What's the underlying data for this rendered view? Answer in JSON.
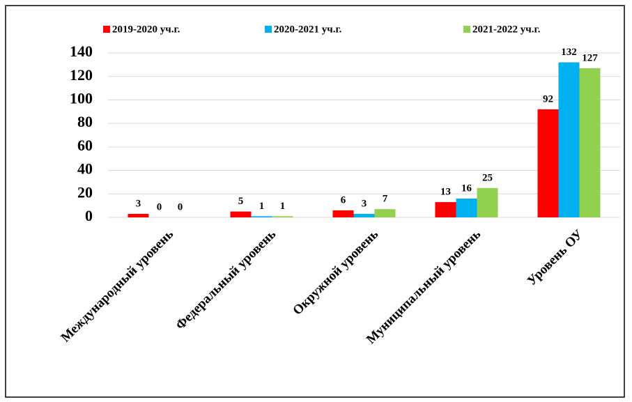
{
  "chart_data": {
    "type": "bar",
    "categories": [
      "Международный уровень",
      "Федеральный уровень",
      "Окружной уровень",
      "Муниципальный уровень",
      "Уровень ОУ"
    ],
    "series": [
      {
        "name": "2019-2020 уч.г.",
        "color": "#ff0000",
        "values": [
          3,
          5,
          6,
          13,
          92
        ]
      },
      {
        "name": "2020-2021 уч.г.",
        "color": "#00b0f0",
        "values": [
          0,
          1,
          3,
          16,
          132
        ]
      },
      {
        "name": "2021-2022 уч.г.",
        "color": "#92d050",
        "values": [
          0,
          1,
          7,
          25,
          127
        ]
      }
    ],
    "ylim": [
      0,
      140
    ],
    "yticks": [
      0,
      20,
      40,
      60,
      80,
      100,
      120,
      140
    ],
    "grid": true,
    "legend": "top"
  }
}
